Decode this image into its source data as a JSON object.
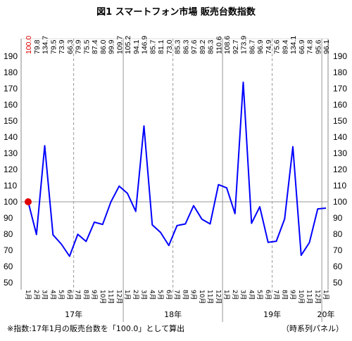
{
  "colors": {
    "line": "#0000ff",
    "marker": "#e00000",
    "first_value": "#e00000",
    "note": "#e00000",
    "grid": "#999999",
    "text": "#000000"
  },
  "chart_data": {
    "type": "line",
    "title": "図1 スマートフォン市場 販売台数指数",
    "footnote": "※指数:17年1月の販売台数を「100.0」として算出",
    "source_note": "（時系列パネル）",
    "year_labels": [
      "17年",
      "18年",
      "19年",
      "20年"
    ],
    "month_labels": [
      "1月",
      "2月",
      "3月",
      "4月",
      "5月",
      "6月",
      "7月",
      "8月",
      "9月",
      "10月",
      "11月",
      "12月",
      "1月",
      "2月",
      "3月",
      "4月",
      "5月",
      "6月",
      "7月",
      "8月",
      "9月",
      "10月",
      "11月",
      "12月",
      "1月",
      "2月",
      "3月",
      "4月",
      "5月",
      "6月",
      "7月",
      "8月",
      "9月",
      "10月",
      "11月",
      "12月",
      "1月"
    ],
    "value_labels": [
      "100.0",
      "79.8",
      "134.7",
      "79.5",
      "73.9",
      "66.3",
      "79.9",
      "75.5",
      "87.4",
      "86.0",
      "99.9",
      "109.7",
      "105.2",
      "94.1",
      "146.9",
      "85.7",
      "81.1",
      "73.0",
      "85.3",
      "86.3",
      "97.6",
      "89.2",
      "86.3",
      "110.6",
      "108.6",
      "92.7",
      "173.9",
      "86.7",
      "96.9",
      "74.9",
      "75.6",
      "89.4",
      "134.1",
      "66.9",
      "74.8",
      "95.6",
      "96.1"
    ],
    "values": [
      100.0,
      79.8,
      134.7,
      79.5,
      73.9,
      66.3,
      79.9,
      75.5,
      87.4,
      86.0,
      99.9,
      109.7,
      105.2,
      94.1,
      146.9,
      85.7,
      81.1,
      73.0,
      85.3,
      86.3,
      97.6,
      89.2,
      86.3,
      110.6,
      108.6,
      92.7,
      173.9,
      86.7,
      96.9,
      74.9,
      75.6,
      89.4,
      134.1,
      66.9,
      74.8,
      95.6,
      96.1
    ],
    "y_ticks": [
      "50",
      "60",
      "70",
      "80",
      "90",
      "100",
      "110",
      "120",
      "130",
      "140",
      "150",
      "160",
      "170",
      "180",
      "190"
    ],
    "ylim": [
      45,
      195
    ],
    "reference_line": 100,
    "grid": false,
    "legend": "none"
  }
}
